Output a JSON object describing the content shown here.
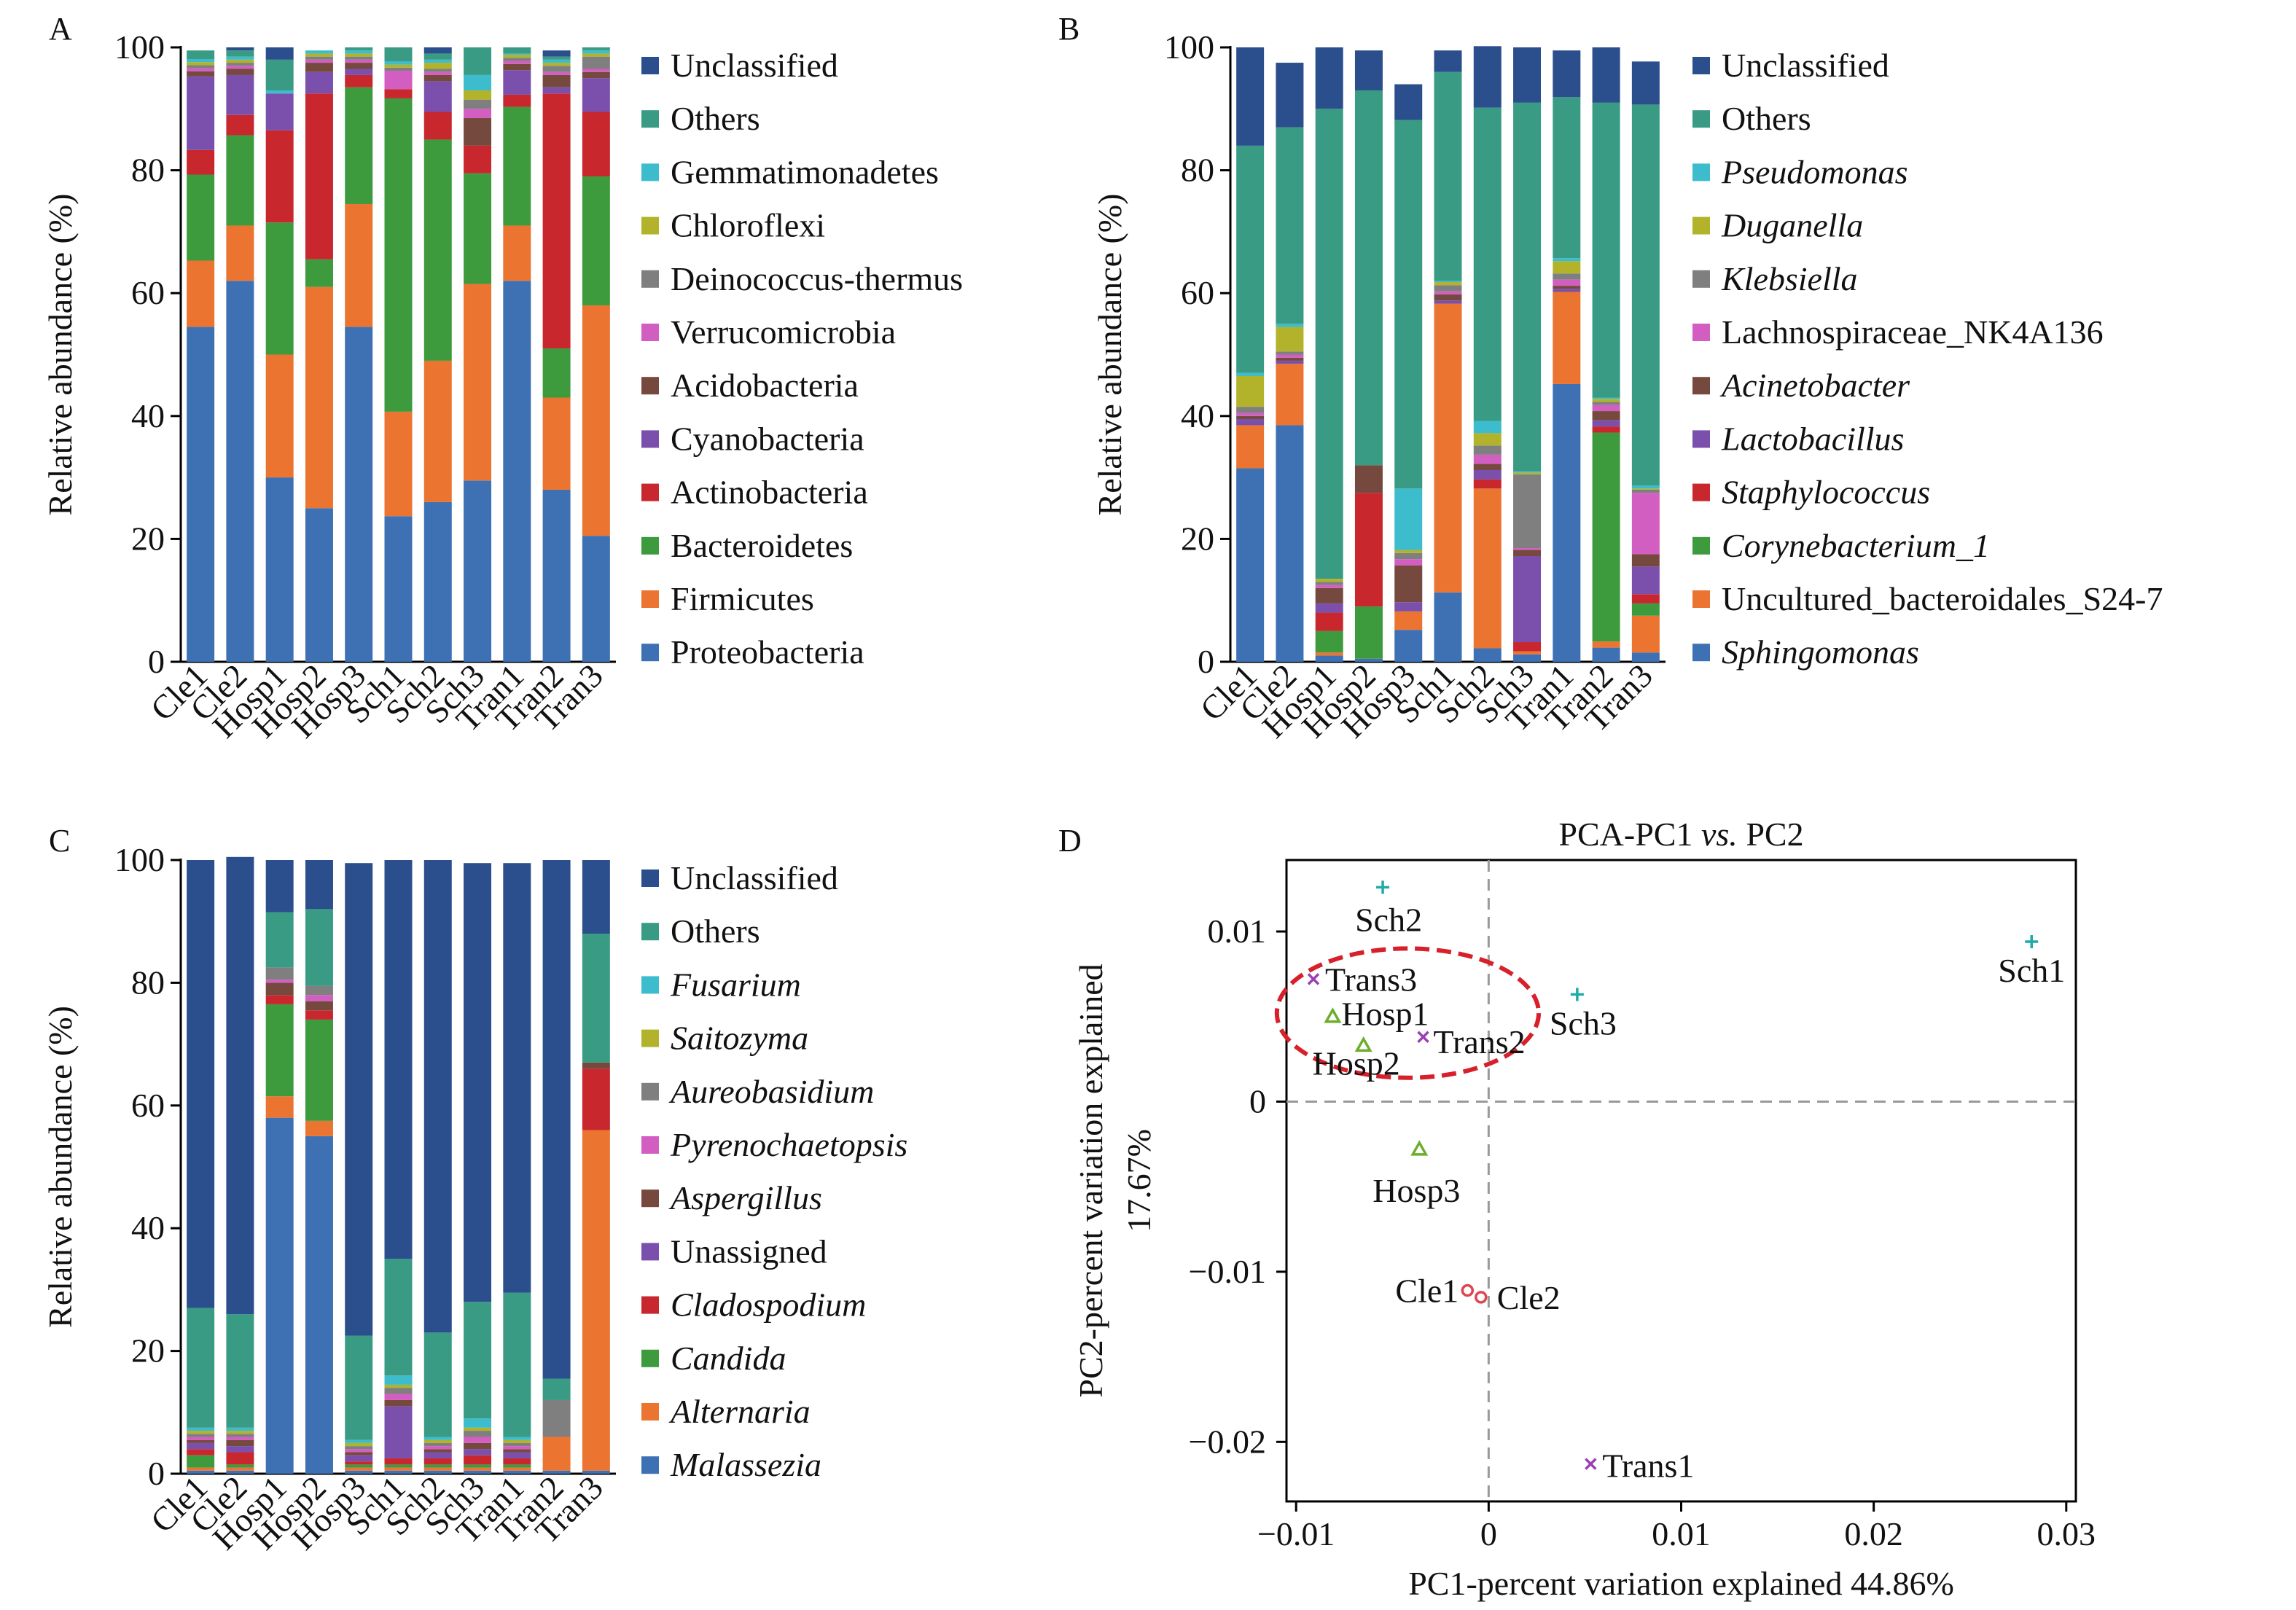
{
  "chart_data": [
    {
      "panel_label": "A",
      "type": "bar",
      "stacked": true,
      "categories": [
        "Cle1",
        "Cle2",
        "Hosp1",
        "Hosp2",
        "Hosp3",
        "Sch1",
        "Sch2",
        "Sch3",
        "Tran1",
        "Tran2",
        "Tran3"
      ],
      "ylabel": "Relative abundance (%)",
      "ylim": [
        0,
        100
      ],
      "yticks": [
        0,
        20,
        40,
        60,
        80,
        100
      ],
      "legend": "right",
      "series": [
        {
          "name": "Proteobacteria",
          "color": "#3e71b3",
          "italic": false,
          "values": [
            54.5,
            62,
            30,
            25,
            54.5,
            23.7,
            26,
            29.5,
            62,
            28,
            20.5
          ]
        },
        {
          "name": "Firmicutes",
          "color": "#ec7431",
          "italic": false,
          "values": [
            10.8,
            9,
            20,
            36,
            20,
            17,
            23,
            32,
            9,
            15,
            37.5
          ]
        },
        {
          "name": "Bacteroidetes",
          "color": "#3d9b3d",
          "italic": false,
          "values": [
            14,
            14.7,
            21.5,
            4.5,
            19,
            51,
            36,
            18,
            19.3,
            8,
            21
          ]
        },
        {
          "name": "Actinobacteria",
          "color": "#c8272e",
          "italic": false,
          "values": [
            4,
            3.3,
            15,
            27,
            2,
            1.5,
            4.5,
            4.5,
            2,
            41.5,
            10.5
          ]
        },
        {
          "name": "Cyanobacteria",
          "color": "#7b50ad",
          "italic": false,
          "values": [
            12,
            6.5,
            6,
            3.5,
            1,
            0,
            5,
            0,
            4,
            1,
            5.5
          ]
        },
        {
          "name": "Acidobacteria",
          "color": "#76493e",
          "italic": false,
          "values": [
            0.8,
            1,
            0,
            1.5,
            1,
            0,
            1,
            4.5,
            1,
            2,
            1
          ]
        },
        {
          "name": "Verrucomicrobia",
          "color": "#d35ec2",
          "italic": false,
          "values": [
            0.5,
            0.5,
            0,
            0.5,
            0.5,
            3,
            0.5,
            1.5,
            0.5,
            0.5,
            0.5
          ]
        },
        {
          "name": "Deinococcus-thermus",
          "color": "#7f7f7f",
          "italic": false,
          "values": [
            0.5,
            0.5,
            0,
            0.5,
            0.5,
            0.5,
            0.5,
            1.5,
            0.5,
            1,
            2
          ]
        },
        {
          "name": "Chloroflexi",
          "color": "#b2b32b",
          "italic": false,
          "values": [
            0.5,
            0.5,
            0,
            0.5,
            0.5,
            0.5,
            1,
            1.5,
            0.5,
            0.5,
            0.5
          ]
        },
        {
          "name": "Gemmatimonadetes",
          "color": "#3cbccd",
          "italic": false,
          "values": [
            0.5,
            0.5,
            0.5,
            0.5,
            0.5,
            0.5,
            0.5,
            2.5,
            0.2,
            0.5,
            0.5
          ]
        },
        {
          "name": "Others",
          "color": "#3a9b84",
          "italic": false,
          "values": [
            1.4,
            1,
            5,
            0,
            0.5,
            2.3,
            1,
            4.5,
            1,
            0.5,
            0.5
          ]
        },
        {
          "name": "Unclassified",
          "color": "#2b4e8c",
          "italic": false,
          "values": [
            0,
            0.5,
            2,
            0,
            0,
            0,
            1,
            0,
            0,
            1,
            0
          ]
        }
      ]
    },
    {
      "panel_label": "B",
      "type": "bar",
      "stacked": true,
      "categories": [
        "Cle1",
        "Cle2",
        "Hosp1",
        "Hosp2",
        "Hosp3",
        "Sch1",
        "Sch2",
        "Sch3",
        "Tran1",
        "Tran2",
        "Tran3"
      ],
      "ylabel": "Relative abundance (%)",
      "ylim": [
        0,
        100
      ],
      "yticks": [
        0,
        20,
        40,
        60,
        80,
        100
      ],
      "legend": "right",
      "series": [
        {
          "name": "Sphingomonas",
          "color": "#3e71b3",
          "italic": true,
          "values": [
            31.5,
            38.5,
            1,
            0.5,
            5.2,
            11.3,
            2.2,
            1.2,
            45.2,
            2.3,
            1.5
          ]
        },
        {
          "name": "Uncultured_bacteroidales_S24-7",
          "color": "#ec7431",
          "italic": false,
          "values": [
            7,
            10,
            0.5,
            0,
            3,
            47,
            26,
            0.5,
            15,
            1,
            6
          ]
        },
        {
          "name": "Corynebacterium_1",
          "color": "#3d9b3d",
          "italic": true,
          "values": [
            0,
            0,
            3.5,
            8.5,
            0,
            0,
            0,
            0,
            0,
            34,
            2
          ]
        },
        {
          "name": "Staphylococcus",
          "color": "#c8272e",
          "italic": true,
          "values": [
            0,
            0,
            3,
            18.5,
            0,
            0,
            1.5,
            1.5,
            0,
            1,
            1.5
          ]
        },
        {
          "name": "Lactobacillus",
          "color": "#7b50ad",
          "italic": true,
          "values": [
            1,
            0.5,
            1.5,
            0,
            1.5,
            0.5,
            1.5,
            14,
            0.5,
            1,
            4.5
          ]
        },
        {
          "name": "Acinetobacter",
          "color": "#76493e",
          "italic": true,
          "values": [
            0.5,
            0.5,
            2.5,
            4.5,
            6,
            1,
            1,
            1,
            0.5,
            1.5,
            2
          ]
        },
        {
          "name": "Lachnospiraceae_NK4A136",
          "color": "#d35ec2",
          "italic": false,
          "values": [
            0.5,
            0.5,
            0.5,
            0,
            1,
            0.5,
            1.5,
            0.3,
            1,
            1,
            10
          ]
        },
        {
          "name": "Klebsiella",
          "color": "#7f7f7f",
          "italic": true,
          "values": [
            1,
            0.5,
            0.5,
            0,
            1,
            1,
            1.5,
            12,
            1,
            0.5,
            0.5
          ]
        },
        {
          "name": "Duganella",
          "color": "#b2b32b",
          "italic": true,
          "values": [
            5,
            4,
            0.5,
            0,
            0.5,
            0.5,
            2,
            0.3,
            2,
            0.5,
            0.2
          ]
        },
        {
          "name": "Pseudomonas",
          "color": "#3cbccd",
          "italic": true,
          "values": [
            0.5,
            0.5,
            0,
            0,
            10,
            0.2,
            2,
            0.2,
            0.5,
            0.2,
            0.5
          ]
        },
        {
          "name": "Others",
          "color": "#3a9b84",
          "italic": false,
          "values": [
            37,
            32,
            76.5,
            61,
            60,
            34,
            51,
            60,
            26.2,
            48,
            62
          ]
        },
        {
          "name": "Unclassified",
          "color": "#2b4e8c",
          "italic": false,
          "values": [
            16,
            10.5,
            10,
            6.5,
            5.8,
            3.5,
            10,
            9,
            7.6,
            9,
            7
          ]
        }
      ]
    },
    {
      "panel_label": "C",
      "type": "bar",
      "stacked": true,
      "categories": [
        "Cle1",
        "Cle2",
        "Hosp1",
        "Hosp2",
        "Hosp3",
        "Sch1",
        "Sch2",
        "Sch3",
        "Tran1",
        "Tran2",
        "Tran3"
      ],
      "ylabel": "Relative abundance (%)",
      "ylim": [
        0,
        100
      ],
      "yticks": [
        0,
        20,
        40,
        60,
        80,
        100
      ],
      "legend": "right",
      "series": [
        {
          "name": "Malassezia",
          "color": "#3e71b3",
          "italic": true,
          "values": [
            0.5,
            0.5,
            58,
            55,
            0.5,
            0.5,
            0.5,
            0.5,
            0.5,
            0.5,
            0.5
          ]
        },
        {
          "name": "Alternaria",
          "color": "#ec7431",
          "italic": true,
          "values": [
            0.5,
            0.5,
            3.5,
            2.5,
            0.5,
            0.5,
            0.5,
            0.5,
            0.5,
            5.5,
            55.5
          ]
        },
        {
          "name": "Candida",
          "color": "#3d9b3d",
          "italic": true,
          "values": [
            2,
            0.5,
            15,
            16.5,
            0.5,
            0.5,
            0.5,
            0.5,
            0.5,
            0,
            0
          ]
        },
        {
          "name": "Cladospodium",
          "color": "#c8272e",
          "italic": true,
          "values": [
            1,
            2,
            1.5,
            1.5,
            0.5,
            1,
            1,
            1.5,
            1,
            0,
            10
          ]
        },
        {
          "name": "Unassigned",
          "color": "#7b50ad",
          "italic": false,
          "values": [
            1,
            1,
            0,
            0,
            1,
            8.5,
            1,
            1,
            1,
            0,
            0
          ]
        },
        {
          "name": "Aspergillus",
          "color": "#76493e",
          "italic": true,
          "values": [
            0.5,
            1,
            2,
            1.5,
            0.5,
            1,
            0.5,
            1,
            0.5,
            0,
            1
          ]
        },
        {
          "name": "Pyrenochaetopsis",
          "color": "#d35ec2",
          "italic": true,
          "values": [
            0.5,
            0.5,
            0.5,
            1,
            0.5,
            1,
            0.5,
            1,
            0.5,
            0,
            0
          ]
        },
        {
          "name": "Aureobasidium",
          "color": "#7f7f7f",
          "italic": true,
          "values": [
            0.5,
            0.5,
            2,
            1.5,
            0.5,
            1,
            0.5,
            1,
            0.5,
            6,
            0
          ]
        },
        {
          "name": "Saitozyma",
          "color": "#b2b32b",
          "italic": true,
          "values": [
            0.5,
            0.5,
            0,
            0,
            0.5,
            0.5,
            0.5,
            0.5,
            0.5,
            0,
            0
          ]
        },
        {
          "name": "Fusarium",
          "color": "#3cbccd",
          "italic": true,
          "values": [
            0.5,
            0.5,
            0,
            0,
            0.5,
            1.5,
            0.5,
            1.5,
            0.5,
            0,
            0
          ]
        },
        {
          "name": "Others",
          "color": "#3a9b84",
          "italic": false,
          "values": [
            19.5,
            18.5,
            9,
            12.5,
            17,
            19,
            17,
            19,
            23.5,
            3.5,
            21
          ]
        },
        {
          "name": "Unclassified",
          "color": "#2b4e8c",
          "italic": false,
          "values": [
            73,
            74.5,
            8.5,
            8,
            77,
            65,
            77,
            71.5,
            70,
            84.5,
            12
          ]
        }
      ]
    },
    {
      "panel_label": "D",
      "type": "scatter",
      "title": "PCA-PC1 vs. PC2",
      "title_parts": [
        "PCA-PC1 ",
        "vs.",
        " PC2"
      ],
      "xlabel": "PC1-percent variation explained 44.86%",
      "ylabel": "PC2-percent variation explained",
      "ylabel_line2": "17.67%",
      "xlim": [
        -0.0105,
        0.0305
      ],
      "ylim": [
        -0.0235,
        0.0142
      ],
      "xticks": [
        -0.01,
        0,
        0.01,
        0.02,
        0.03
      ],
      "xtick_labels": [
        "−0.01",
        "0",
        "0.01",
        "0.02",
        "0.03"
      ],
      "yticks": [
        -0.02,
        -0.01,
        0,
        0.01
      ],
      "ytick_labels": [
        "−0.02",
        "−0.01",
        "0",
        "0.01"
      ],
      "reference_lines": {
        "x": 0,
        "y": 0,
        "style": "dashed"
      },
      "highlight_ellipse": {
        "cx": -0.0042,
        "cy": 0.0052,
        "rx": 0.0068,
        "ry": 0.0038,
        "color": "#d8202a"
      },
      "points": [
        {
          "label": "Sch2",
          "x": -0.0055,
          "y": 0.0126,
          "group": "Sch",
          "marker": "+",
          "color": "#1eaaa8"
        },
        {
          "label": "Sch1",
          "x": 0.0282,
          "y": 0.0094,
          "group": "Sch",
          "marker": "+",
          "color": "#1eaaa8"
        },
        {
          "label": "Sch3",
          "x": 0.0046,
          "y": 0.0063,
          "group": "Sch",
          "marker": "+",
          "color": "#1eaaa8"
        },
        {
          "label": "Trans3",
          "x": -0.0091,
          "y": 0.0072,
          "group": "Trans",
          "marker": "x",
          "color": "#9b3fb5"
        },
        {
          "label": "Trans2",
          "x": -0.0034,
          "y": 0.0038,
          "group": "Trans",
          "marker": "x",
          "color": "#9b3fb5"
        },
        {
          "label": "Trans1",
          "x": 0.0053,
          "y": -0.0213,
          "group": "Trans",
          "marker": "x",
          "color": "#9b3fb5"
        },
        {
          "label": "Hosp1",
          "x": -0.0081,
          "y": 0.005,
          "group": "Hosp",
          "marker": "triangle",
          "color": "#6cae2c"
        },
        {
          "label": "Hosp2",
          "x": -0.0065,
          "y": 0.0033,
          "group": "Hosp",
          "marker": "triangle",
          "color": "#6cae2c"
        },
        {
          "label": "Hosp3",
          "x": -0.0036,
          "y": -0.0028,
          "group": "Hosp",
          "marker": "triangle",
          "color": "#6cae2c"
        },
        {
          "label": "Cle1",
          "x": -0.0011,
          "y": -0.0111,
          "group": "Cle",
          "marker": "circle",
          "color": "#e0454f"
        },
        {
          "label": "Cle2",
          "x": -0.0004,
          "y": -0.0115,
          "group": "Cle",
          "marker": "circle",
          "color": "#e0454f"
        }
      ]
    }
  ]
}
